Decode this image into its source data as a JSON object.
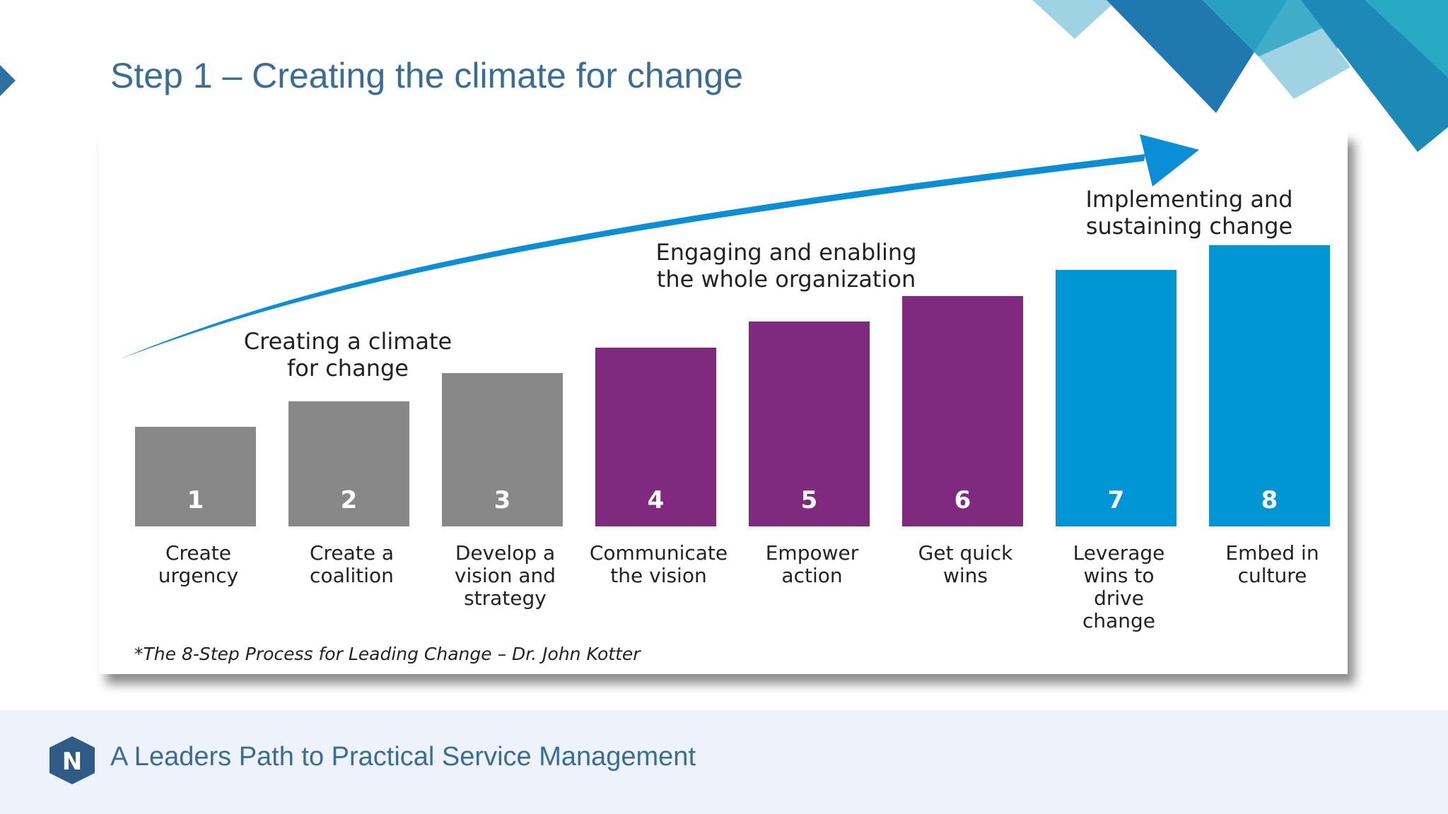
{
  "slide": {
    "title": "Step 1 – Creating the climate for change"
  },
  "diagram": {
    "phases": [
      {
        "lines": [
          "Creating a climate",
          "for change"
        ],
        "color": "#888888"
      },
      {
        "lines": [
          "Engaging and enabling",
          "the whole organization"
        ],
        "color": "#7f2a7e"
      },
      {
        "lines": [
          "Implementing and",
          "sustaining change"
        ],
        "color": "#0096d6"
      }
    ],
    "steps": [
      {
        "number": "1",
        "phase": 0,
        "lines": [
          "Create",
          "urgency"
        ]
      },
      {
        "number": "2",
        "phase": 0,
        "lines": [
          "Create a",
          "coalition"
        ]
      },
      {
        "number": "3",
        "phase": 0,
        "lines": [
          "Develop a",
          "vision and",
          "strategy"
        ]
      },
      {
        "number": "4",
        "phase": 1,
        "lines": [
          "Communicate",
          "the vision"
        ]
      },
      {
        "number": "5",
        "phase": 1,
        "lines": [
          "Empower",
          "action"
        ]
      },
      {
        "number": "6",
        "phase": 1,
        "lines": [
          "Get quick",
          "wins"
        ]
      },
      {
        "number": "7",
        "phase": 2,
        "lines": [
          "Leverage",
          "wins to",
          "drive",
          "change"
        ]
      },
      {
        "number": "8",
        "phase": 2,
        "lines": [
          "Embed in",
          "culture"
        ]
      }
    ],
    "citation": "*The 8-Step Process for Leading Change – Dr. John Kotter",
    "arrow_color": "#0a8fd6"
  },
  "footer": {
    "logo_letter": "N",
    "text": "A Leaders Path to Practical Service Management"
  },
  "colors": {
    "title": "#3a6c99",
    "footer_bg": "#eef2fa",
    "logo": "#2f5c86"
  },
  "icons": {
    "logo": "hexagon-n-logo-icon",
    "marker": "chevron-right-icon"
  }
}
